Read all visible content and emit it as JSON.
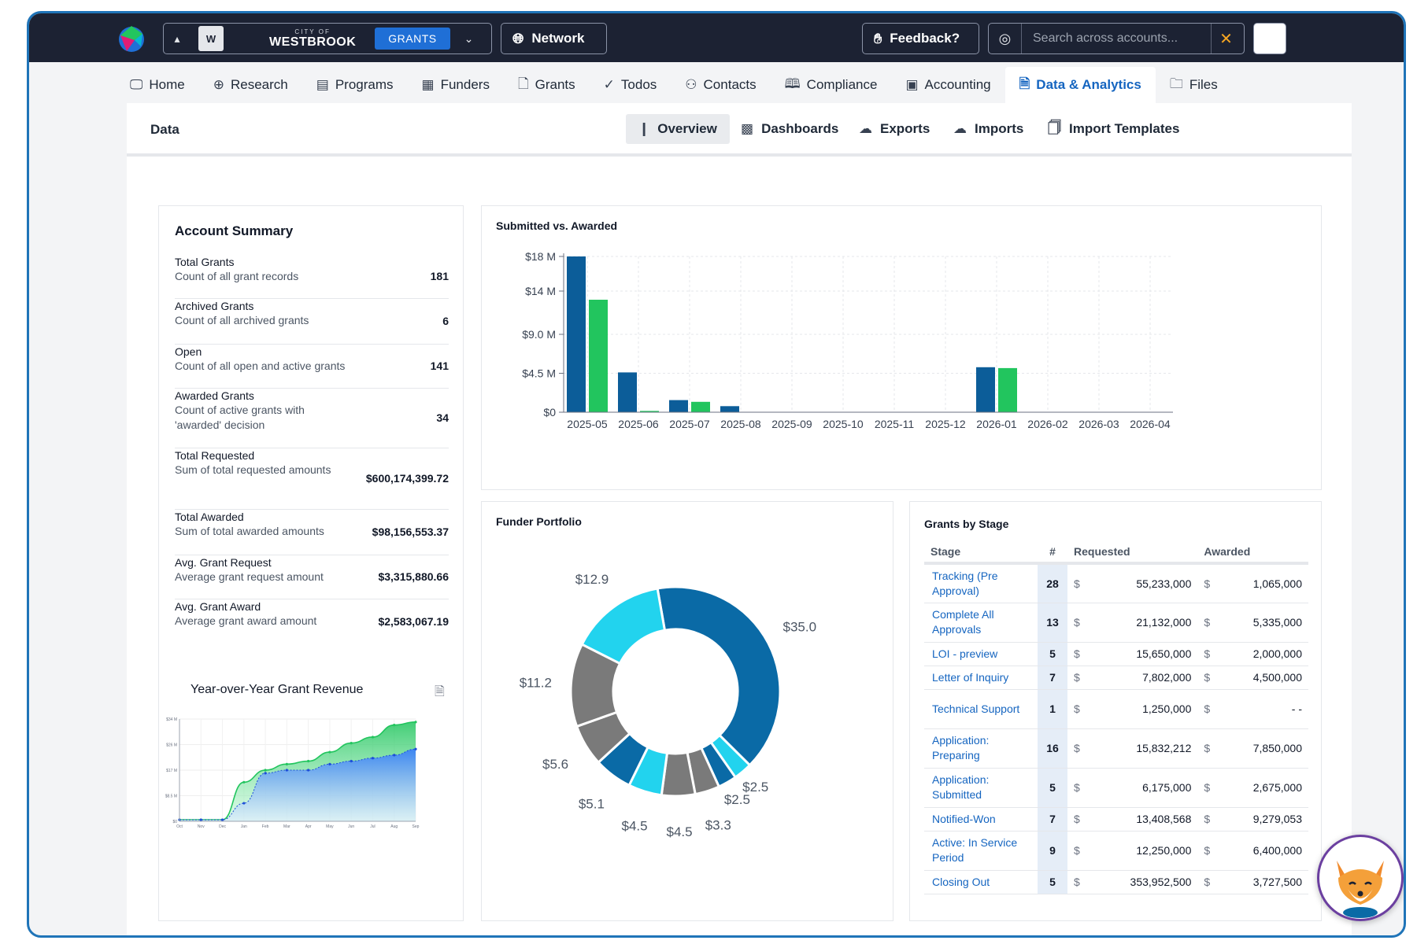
{
  "topbar": {
    "city_small": "CITY OF",
    "city_name": "WESTBROOK",
    "seal_text": "W",
    "product_pill": "GRANTS",
    "network_label": "Network",
    "feedback_label": "Feedback?",
    "search_placeholder": "Search across accounts..."
  },
  "nav": [
    {
      "label": "Home",
      "icon": "monitor-icon"
    },
    {
      "label": "Research",
      "icon": "globe-icon"
    },
    {
      "label": "Programs",
      "icon": "briefcase-icon"
    },
    {
      "label": "Funders",
      "icon": "building-icon"
    },
    {
      "label": "Grants",
      "icon": "dollar-doc-icon"
    },
    {
      "label": "Todos",
      "icon": "check-circle-icon"
    },
    {
      "label": "Contacts",
      "icon": "people-icon"
    },
    {
      "label": "Compliance",
      "icon": "book-icon"
    },
    {
      "label": "Accounting",
      "icon": "wallet-icon"
    },
    {
      "label": "Data & Analytics",
      "icon": "chart-doc-icon"
    },
    {
      "label": "Files",
      "icon": "folder-icon"
    }
  ],
  "subnav": {
    "title": "Data",
    "tabs": [
      {
        "label": "Overview",
        "icon": "bar-chart-icon"
      },
      {
        "label": "Dashboards",
        "icon": "grid-icon"
      },
      {
        "label": "Exports",
        "icon": "cloud-download-icon"
      },
      {
        "label": "Imports",
        "icon": "cloud-upload-icon"
      },
      {
        "label": "Import Templates",
        "icon": "copy-icon"
      }
    ]
  },
  "summary": {
    "title": "Account Summary",
    "rows": [
      {
        "label": "Total Grants",
        "desc": "Count of all grant records",
        "value": "181"
      },
      {
        "label": "Archived Grants",
        "desc": "Count of all archived grants",
        "value": "6"
      },
      {
        "label": "Open",
        "desc": "Count of all open and active grants",
        "value": "141"
      },
      {
        "label": "Awarded Grants",
        "desc": "Count of active grants with 'awarded' decision",
        "value": "34"
      },
      {
        "label": "Total Requested",
        "desc": "Sum of total requested amounts",
        "value": "$600,174,399.72"
      },
      {
        "label": "Total Awarded",
        "desc": "Sum of total awarded amounts",
        "value": "$98,156,553.37"
      },
      {
        "label": "Avg. Grant Request",
        "desc": "Average grant request amount",
        "value": "$3,315,880.66"
      },
      {
        "label": "Avg. Grant Award",
        "desc": "Average grant award amount",
        "value": "$2,583,067.19"
      }
    ],
    "yoy_title": "Year-over-Year Grant Revenue"
  },
  "stage_table": {
    "title": "Grants by Stage",
    "headers": [
      "Stage",
      "#",
      "Requested",
      "Awarded"
    ],
    "currency": "$",
    "rows": [
      {
        "stage": "Tracking (Pre Approval)",
        "count": "28",
        "requested": "55,233,000",
        "awarded": "1,065,000"
      },
      {
        "stage": "Complete All Approvals",
        "count": "13",
        "requested": "21,132,000",
        "awarded": "5,335,000"
      },
      {
        "stage": "LOI - preview",
        "count": "5",
        "requested": "15,650,000",
        "awarded": "2,000,000"
      },
      {
        "stage": "Letter of Inquiry",
        "count": "7",
        "requested": "7,802,000",
        "awarded": "4,500,000"
      },
      {
        "stage": "Technical Support",
        "count": "1",
        "requested": "1,250,000",
        "awarded": "- -"
      },
      {
        "stage": "Application: Preparing",
        "count": "16",
        "requested": "15,832,212",
        "awarded": "7,850,000"
      },
      {
        "stage": "Application: Submitted",
        "count": "5",
        "requested": "6,175,000",
        "awarded": "2,675,000"
      },
      {
        "stage": "Notified-Won",
        "count": "7",
        "requested": "13,408,568",
        "awarded": "9,279,053"
      },
      {
        "stage": "Active: In Service Period",
        "count": "9",
        "requested": "12,250,000",
        "awarded": "6,400,000"
      },
      {
        "stage": "Closing Out",
        "count": "5",
        "requested": "353,952,500",
        "awarded": "3,727,500"
      }
    ]
  },
  "colors": {
    "submitted": "#0c5d99",
    "awarded": "#22c55e",
    "link": "#1565c0",
    "donut": [
      "#0a6aa6",
      "#22d3ee",
      "#0a6aa6",
      "#7a7a7a",
      "#7a7a7a",
      "#22d3ee",
      "#0a6aa6",
      "#7a7a7a",
      "#7a7a7a",
      "#22d3ee"
    ]
  },
  "chart_data": [
    {
      "type": "bar",
      "title": "Submitted vs. Awarded",
      "categories": [
        "2025-05",
        "2025-06",
        "2025-07",
        "2025-08",
        "2025-09",
        "2025-10",
        "2025-11",
        "2025-12",
        "2026-01",
        "2026-02",
        "2026-03",
        "2026-04"
      ],
      "series": [
        {
          "values": [
            18.0,
            4.6,
            1.4,
            0.7,
            0,
            0,
            0,
            0,
            5.2,
            0,
            0,
            0
          ]
        },
        {
          "values": [
            13.0,
            0.15,
            1.2,
            0,
            0,
            0,
            0,
            0,
            5.1,
            0,
            0,
            0
          ]
        }
      ],
      "yticks": [
        0,
        4.5,
        9.0,
        14,
        18
      ],
      "ytick_labels": [
        "$0",
        "$4.5 M",
        "$9.0 M",
        "$14 M",
        "$18 M"
      ],
      "ylim": [
        0,
        18
      ],
      "grid": true
    },
    {
      "type": "pie",
      "title": "Funder Portfolio",
      "values": [
        35.0,
        2.5,
        2.5,
        3.3,
        4.5,
        4.5,
        5.1,
        5.6,
        11.2,
        12.9
      ],
      "labels": [
        "$35.0",
        "$2.5",
        "$2.5",
        "$3.3",
        "$4.5",
        "$4.5",
        "$5.1",
        "$5.6",
        "$11.2",
        "$12.9"
      ]
    },
    {
      "type": "area",
      "title": "Year-over-Year Grant Revenue",
      "categories": [
        "Oct",
        "Nov",
        "Dec",
        "Jan",
        "Feb",
        "Mar",
        "Apr",
        "May",
        "Jun",
        "Jul",
        "Aug",
        "Sep"
      ],
      "ytick_labels": [
        "$0",
        "$8.5 M",
        "$17 M",
        "$26 M",
        "$34 M"
      ],
      "ylim": [
        0,
        34
      ],
      "series": [
        {
          "values": [
            0.5,
            0.5,
            0.5,
            13,
            17,
            19,
            20,
            23,
            26,
            28,
            32,
            33
          ]
        },
        {
          "values": [
            0.5,
            0.5,
            0.5,
            6,
            16,
            17,
            17,
            19,
            20,
            21,
            22,
            24
          ]
        }
      ]
    }
  ]
}
